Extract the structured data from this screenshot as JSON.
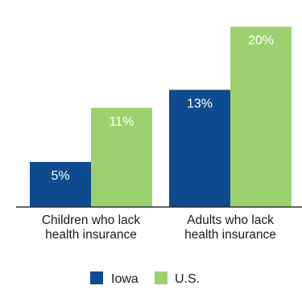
{
  "chart_data": {
    "type": "bar",
    "categories": [
      [
        "Children who lack",
        "health insurance"
      ],
      [
        "Adults who lack",
        "health insurance"
      ]
    ],
    "series": [
      {
        "name": "Iowa",
        "values": [
          5,
          13
        ],
        "labels": [
          "5%",
          "13%"
        ],
        "color": "#0f4c8f"
      },
      {
        "name": "U.S.",
        "values": [
          11,
          20
        ],
        "labels": [
          "11%",
          "20%"
        ],
        "color": "#9dd16f"
      }
    ],
    "ylim": [
      0,
      21
    ],
    "grid": false,
    "legend_position": "bottom-center",
    "baseline_color": "#333333"
  }
}
